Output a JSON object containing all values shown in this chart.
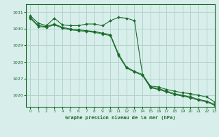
{
  "title": "Graphe pression niveau de la mer (hPa)",
  "bg_color": "#d8eeeb",
  "grid_color": "#b0d4cc",
  "line_color": "#1a6b2a",
  "xlim": [
    -0.5,
    23
  ],
  "ylim": [
    1025.3,
    1031.5
  ],
  "yticks": [
    1026,
    1027,
    1028,
    1029,
    1030,
    1031
  ],
  "xticks": [
    0,
    1,
    2,
    3,
    4,
    5,
    6,
    7,
    8,
    9,
    10,
    11,
    12,
    13,
    14,
    15,
    16,
    17,
    18,
    19,
    20,
    21,
    22,
    23
  ],
  "series": [
    [
      1030.8,
      1030.35,
      1030.2,
      1030.65,
      1030.25,
      1030.2,
      1030.2,
      1030.3,
      1030.3,
      1030.2,
      1030.5,
      1030.7,
      1030.65,
      1030.5,
      1027.25,
      1026.55,
      1026.5,
      1026.35,
      1026.25,
      1026.15,
      1026.1,
      1026.0,
      1025.9,
      1025.6
    ],
    [
      1030.7,
      1030.2,
      1030.15,
      1030.3,
      1030.1,
      1030.0,
      1029.95,
      1029.9,
      1029.85,
      1029.75,
      1029.65,
      1028.5,
      1027.7,
      1027.45,
      1027.25,
      1026.5,
      1026.4,
      1026.25,
      1026.1,
      1026.0,
      1025.9,
      1025.75,
      1025.65,
      1025.45
    ],
    [
      1030.65,
      1030.15,
      1030.1,
      1030.25,
      1030.05,
      1029.95,
      1029.9,
      1029.85,
      1029.8,
      1029.7,
      1029.6,
      1028.4,
      1027.65,
      1027.4,
      1027.2,
      1026.45,
      1026.35,
      1026.2,
      1026.05,
      1025.95,
      1025.85,
      1025.7,
      1025.6,
      1025.4
    ]
  ]
}
